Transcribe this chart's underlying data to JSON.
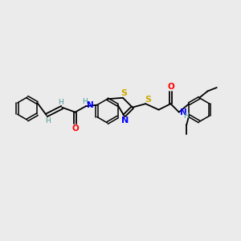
{
  "background_color": "#ebebeb",
  "atom_colors": {
    "C": "#000000",
    "H": "#4a9a9a",
    "N": "#0000ff",
    "O": "#ff0000",
    "S": "#ccaa00"
  },
  "bond_color": "#000000",
  "figure_size": [
    3.0,
    3.0
  ],
  "dpi": 100
}
